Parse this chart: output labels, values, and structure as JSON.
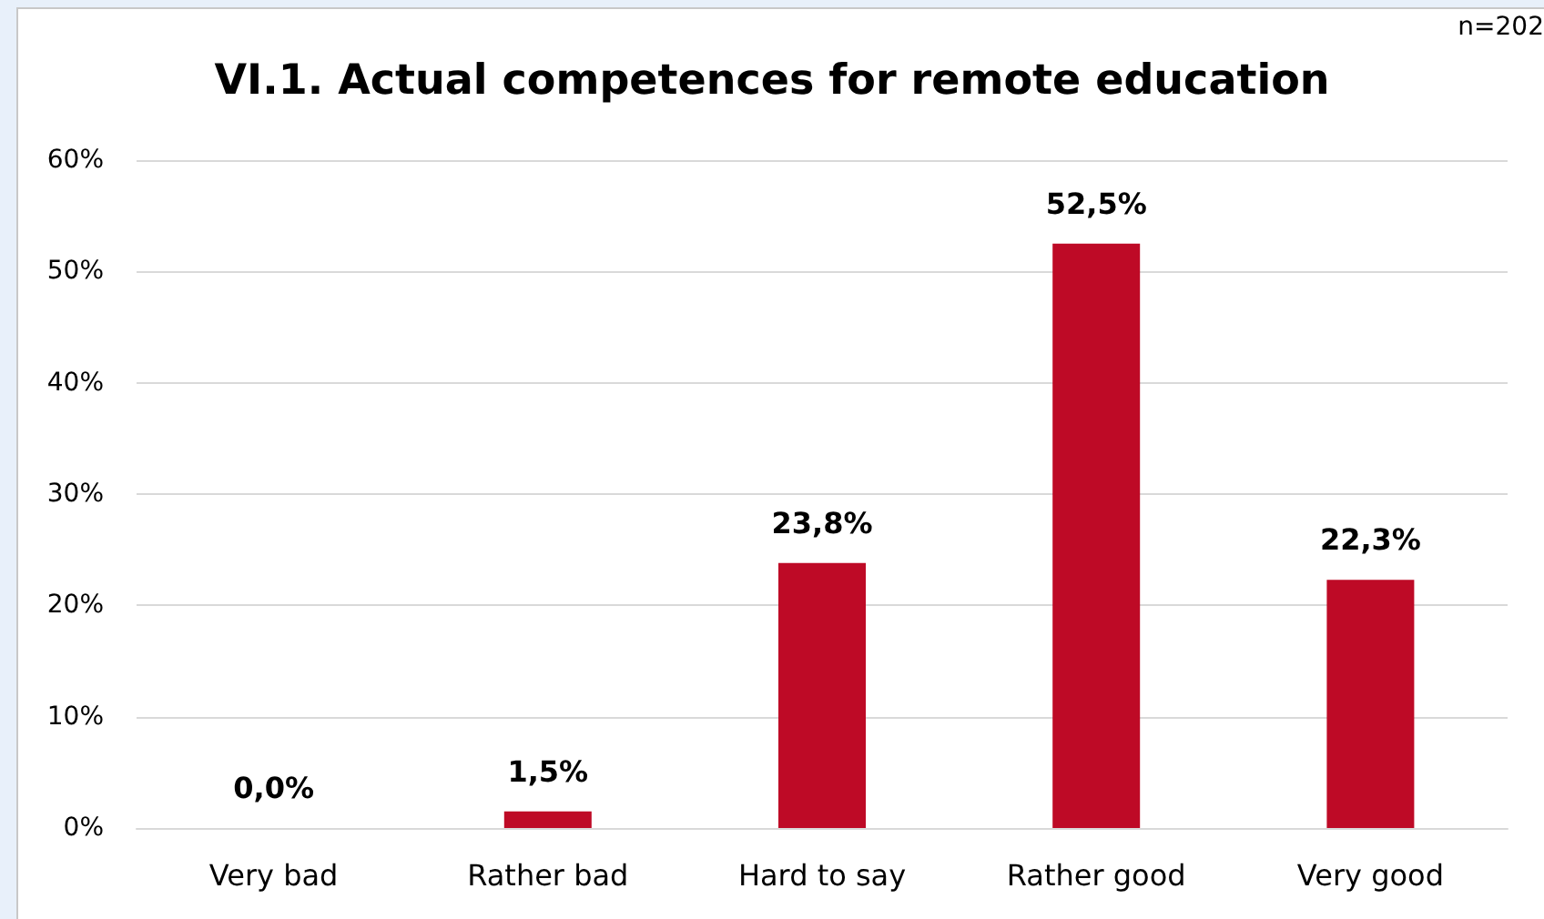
{
  "chart_data": {
    "type": "bar",
    "title": "VI.1. Actual competences for remote education",
    "annotations": [
      "n=202"
    ],
    "categories": [
      "Very bad",
      "Rather bad",
      "Hard to say",
      "Rather good",
      "Very good"
    ],
    "values": [
      0,
      1.5,
      23.8,
      52.5,
      22.3
    ],
    "value_labels": [
      "0,0%",
      "1,5%",
      "23,8%",
      "52,5%",
      "22,3%"
    ],
    "color": "#be0a26",
    "ylim": [
      0,
      60
    ],
    "yticks": [
      {
        "value": 0,
        "label": "0%"
      },
      {
        "value": 10,
        "label": "10%"
      },
      {
        "value": 20,
        "label": "20%"
      },
      {
        "value": 30,
        "label": "30%"
      },
      {
        "value": 40,
        "label": "40%"
      },
      {
        "value": 50,
        "label": "50%"
      },
      {
        "value": 60,
        "label": "60%"
      }
    ],
    "grid": "y"
  }
}
